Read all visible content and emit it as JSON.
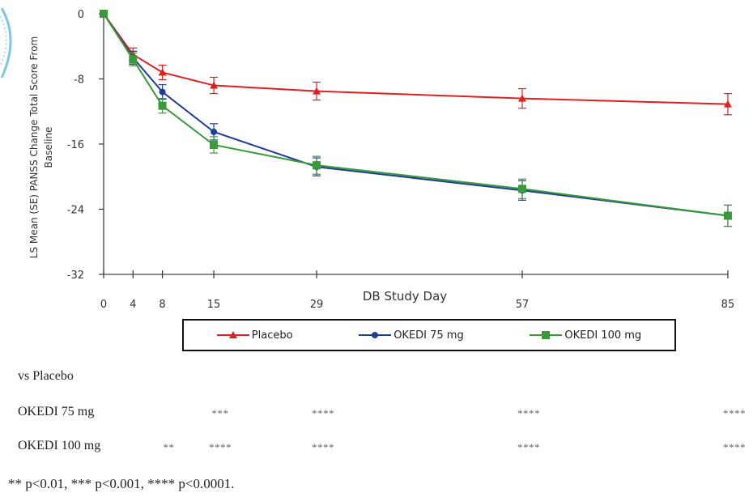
{
  "chart_data": {
    "type": "line",
    "x": [
      0,
      4,
      8,
      15,
      29,
      57,
      85
    ],
    "xlabel": "DB Study Day",
    "ylabel": "LS Mean (SE) PANSS Change Total Score From Baseline",
    "ylim": [
      -32,
      0
    ],
    "yticks": [
      0,
      -8,
      -16,
      -24,
      -32
    ],
    "series": [
      {
        "name": "Placebo",
        "color": "#e02020",
        "marker": "triangle",
        "values": [
          0,
          -5.0,
          -7.2,
          -8.8,
          -9.5,
          -10.4,
          -11.1
        ],
        "errors": [
          0,
          0.8,
          0.9,
          1.0,
          1.1,
          1.2,
          1.3
        ]
      },
      {
        "name": "OKEDI 75 mg",
        "color": "#1f3c99",
        "marker": "circle",
        "values": [
          0,
          -5.4,
          -9.6,
          -14.5,
          -18.8,
          -21.7,
          -24.8
        ],
        "errors": [
          0,
          0.8,
          0.9,
          1.0,
          1.1,
          1.2,
          1.3
        ]
      },
      {
        "name": "OKEDI 100 mg",
        "color": "#3a9a3a",
        "marker": "square",
        "values": [
          0,
          -5.6,
          -11.3,
          -16.1,
          -18.6,
          -21.5,
          -24.8
        ],
        "errors": [
          0,
          0.8,
          0.9,
          1.0,
          1.1,
          1.2,
          1.3
        ]
      }
    ],
    "legend": "bottom"
  },
  "significance": {
    "header": "vs Placebo",
    "rows": [
      {
        "label": "OKEDI 75 mg",
        "marks": [
          {
            "day": 15,
            "stars": "***"
          },
          {
            "day": 29,
            "stars": "****"
          },
          {
            "day": 57,
            "stars": "****"
          },
          {
            "day": 85,
            "stars": "****"
          }
        ]
      },
      {
        "label": "OKEDI 100 mg",
        "marks": [
          {
            "day": 8,
            "stars": "**"
          },
          {
            "day": 15,
            "stars": "****"
          },
          {
            "day": 29,
            "stars": "****"
          },
          {
            "day": 57,
            "stars": "****"
          },
          {
            "day": 85,
            "stars": "****"
          }
        ]
      }
    ],
    "footnote": "** p<0.01, *** p<0.001, **** p<0.0001."
  }
}
